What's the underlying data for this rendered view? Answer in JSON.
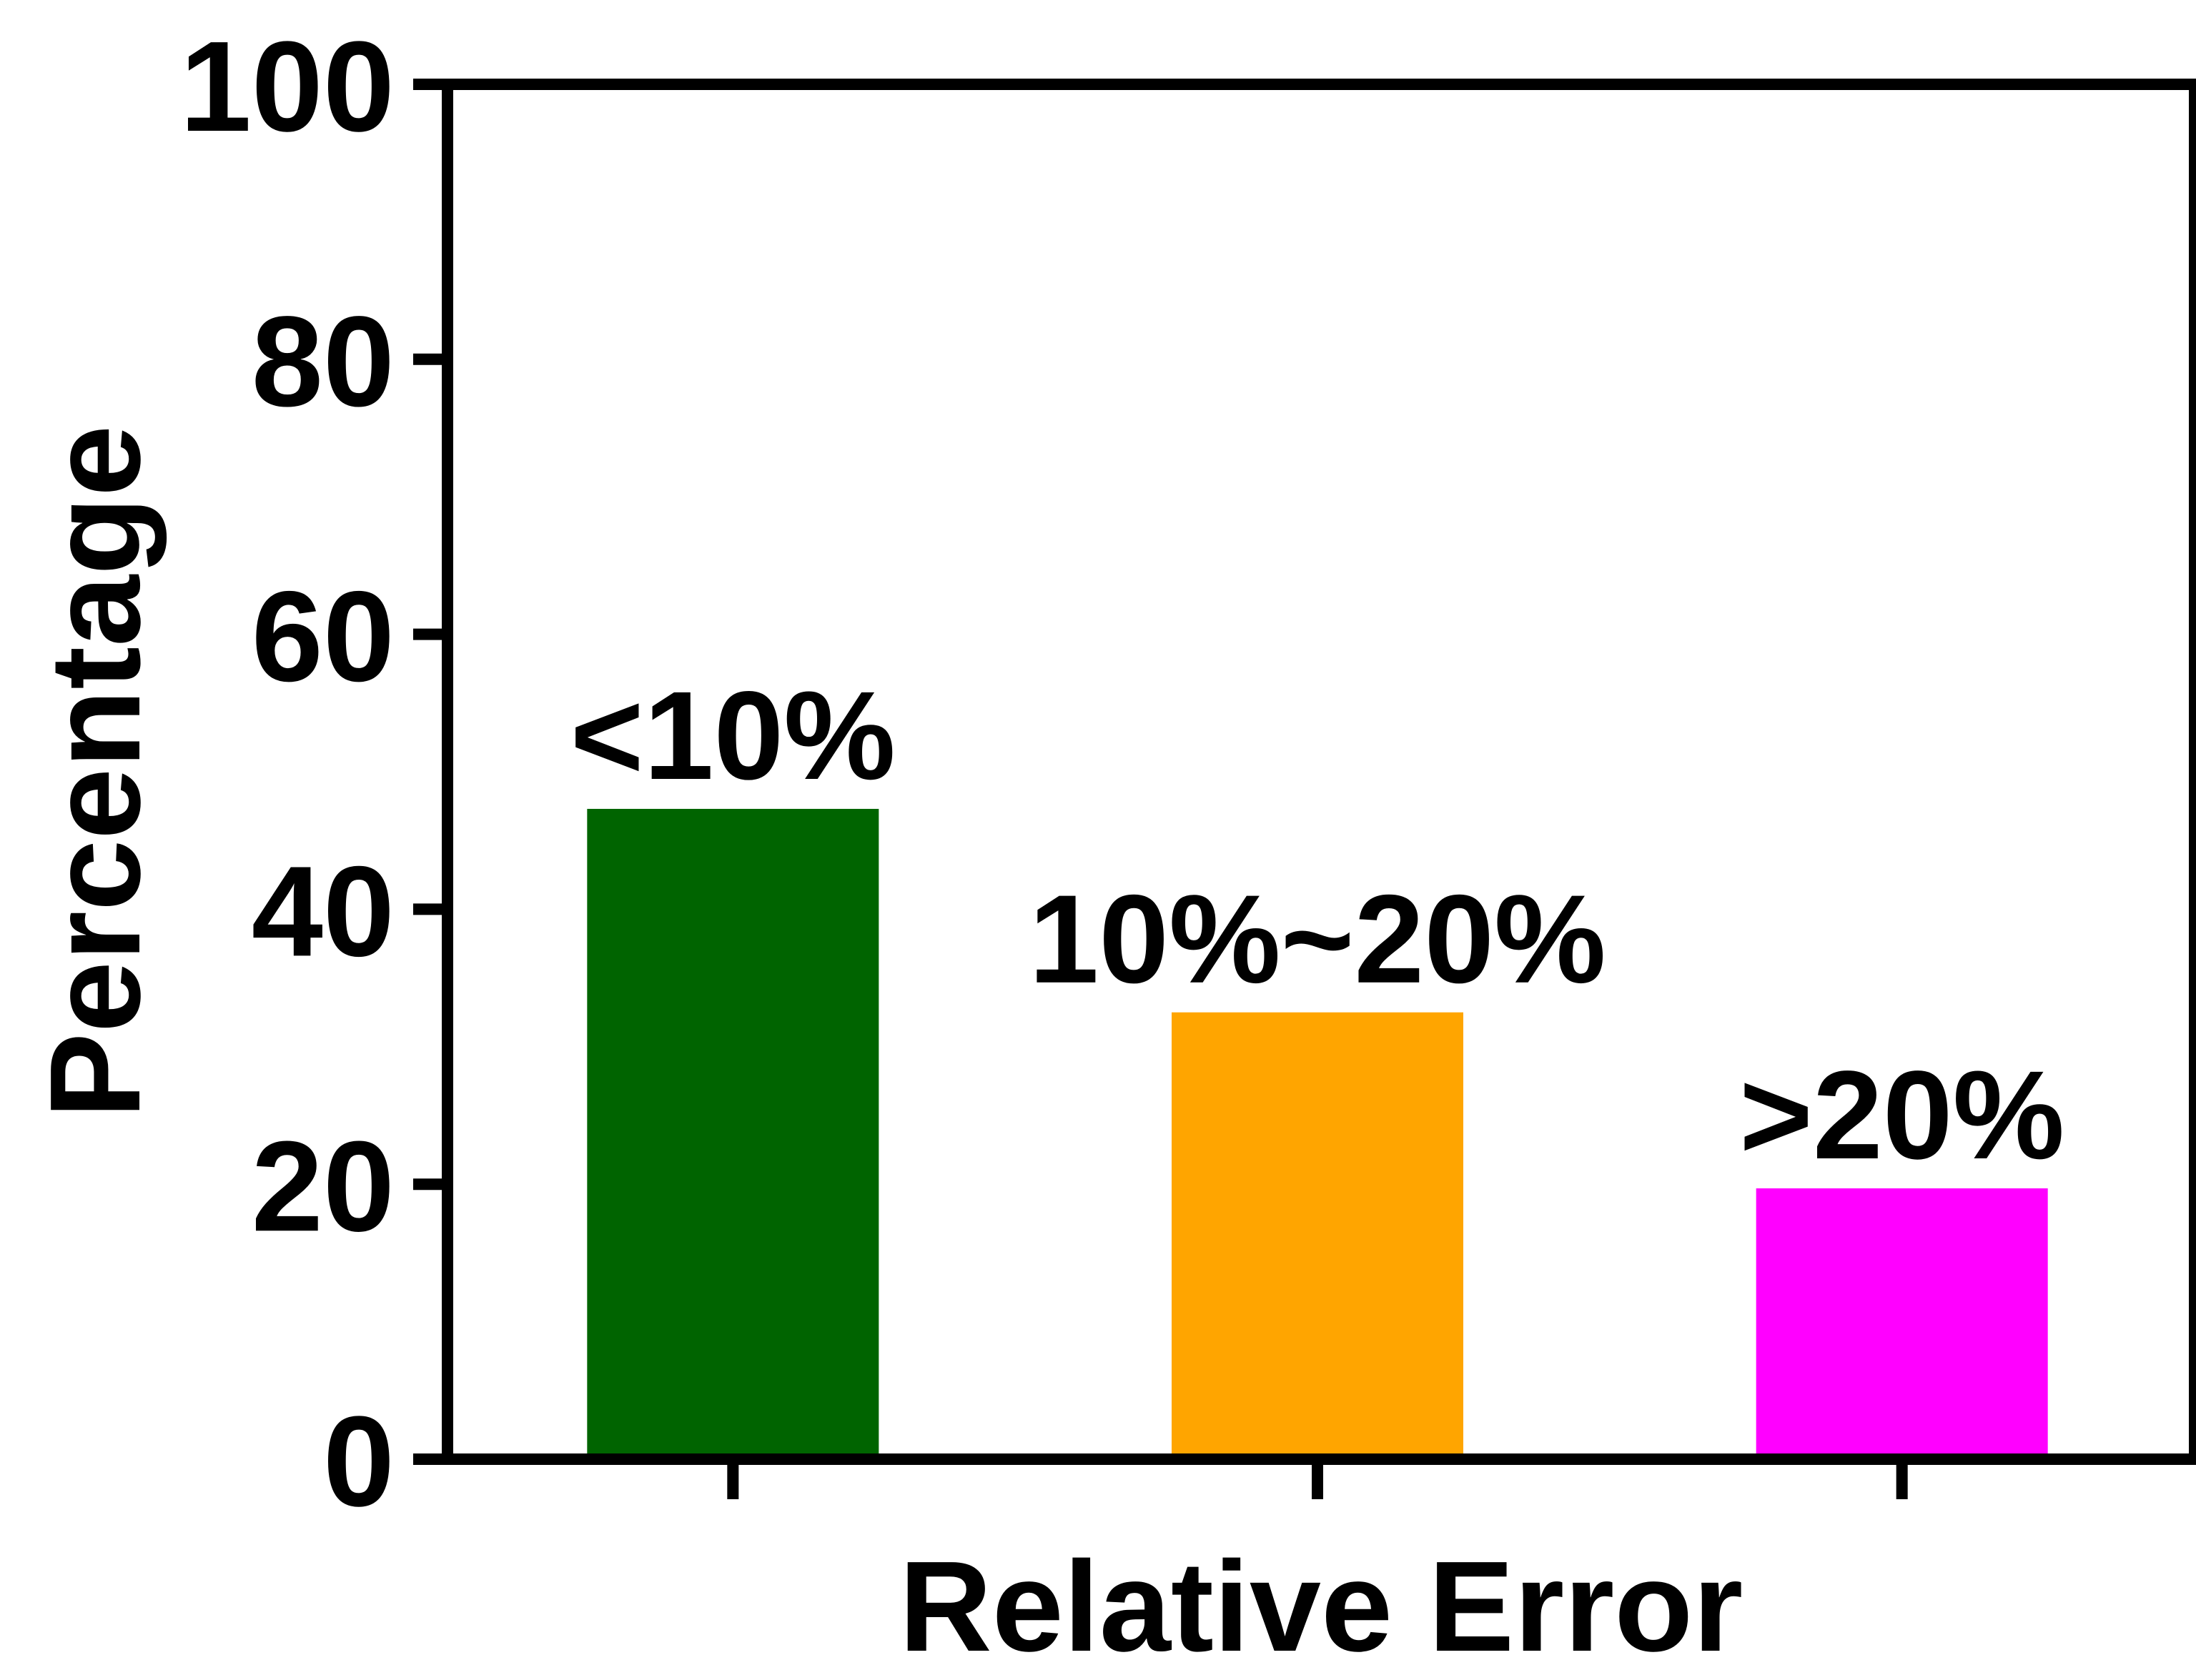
{
  "chart_data": {
    "type": "bar",
    "xlabel": "Relative Error",
    "ylabel": "Percentage",
    "ylim": [
      0,
      100
    ],
    "yticks": [
      "0",
      "20",
      "40",
      "60",
      "80",
      "100"
    ],
    "grid": false,
    "legend": "none",
    "categories": [
      "<10%",
      "10%~20%",
      ">20%"
    ],
    "values": [
      47.3,
      32.5,
      19.7
    ],
    "bar_labels": [
      "<10%",
      "10%~20%",
      ">20%"
    ],
    "colors": [
      "#006400",
      "#FFA500",
      "#FF00FF"
    ],
    "axis_color": "#000000"
  }
}
